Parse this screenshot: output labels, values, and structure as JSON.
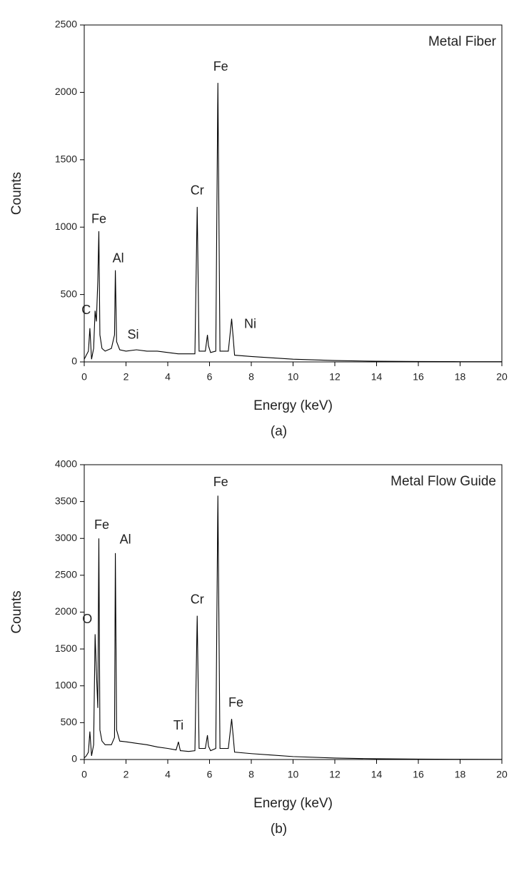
{
  "chart_data": [
    {
      "type": "line",
      "title": "Metal Fiber",
      "caption": "(a)",
      "x_label": "Energy (keV)",
      "y_label": "Counts",
      "color": "#000000",
      "xlim": [
        0,
        20
      ],
      "xticks": [
        0,
        2,
        4,
        6,
        8,
        10,
        12,
        14,
        16,
        18,
        20
      ],
      "ylim": [
        0,
        2500
      ],
      "yticks": [
        0,
        500,
        1000,
        1500,
        2000,
        2500
      ],
      "x": [
        0,
        0.1,
        0.2,
        0.27,
        0.35,
        0.45,
        0.52,
        0.58,
        0.65,
        0.7,
        0.75,
        0.85,
        1.0,
        1.3,
        1.45,
        1.49,
        1.55,
        1.7,
        2.0,
        2.5,
        3.0,
        3.5,
        4.0,
        4.5,
        5.0,
        5.3,
        5.41,
        5.5,
        5.8,
        5.9,
        5.95,
        6.05,
        6.3,
        6.4,
        6.5,
        6.9,
        7.06,
        7.2,
        8,
        9,
        10,
        12,
        14,
        16,
        18,
        20
      ],
      "values": [
        20,
        50,
        80,
        250,
        20,
        100,
        380,
        300,
        600,
        970,
        200,
        100,
        80,
        100,
        200,
        680,
        150,
        90,
        80,
        90,
        80,
        80,
        70,
        60,
        60,
        60,
        1150,
        80,
        80,
        200,
        120,
        70,
        80,
        2070,
        80,
        80,
        320,
        50,
        40,
        30,
        20,
        10,
        5,
        3,
        2,
        2
      ],
      "annotations": [
        {
          "text": "C",
          "x": 0.52
        },
        {
          "text": "Fe",
          "x": 0.7
        },
        {
          "text": "Al",
          "x": 1.49
        },
        {
          "text": "Si",
          "x": 2.0
        },
        {
          "text": "Cr",
          "x": 5.41
        },
        {
          "text": "Fe",
          "x": 6.4
        },
        {
          "text": "Ni",
          "x": 7.06
        }
      ]
    },
    {
      "type": "line",
      "title": "Metal Flow Guide",
      "caption": "(b)",
      "x_label": "Energy (keV)",
      "y_label": "Counts",
      "color": "#000000",
      "xlim": [
        0,
        20
      ],
      "xticks": [
        0,
        2,
        4,
        6,
        8,
        10,
        12,
        14,
        16,
        18,
        20
      ],
      "ylim": [
        0,
        4000
      ],
      "yticks": [
        0,
        500,
        1000,
        1500,
        2000,
        2500,
        3000,
        3500,
        4000
      ],
      "x": [
        0,
        0.1,
        0.2,
        0.27,
        0.35,
        0.45,
        0.52,
        0.58,
        0.65,
        0.7,
        0.75,
        0.85,
        1.0,
        1.3,
        1.45,
        1.49,
        1.55,
        1.7,
        2.0,
        2.5,
        3.0,
        3.5,
        4.0,
        4.4,
        4.51,
        4.6,
        5.0,
        5.3,
        5.41,
        5.5,
        5.8,
        5.9,
        5.95,
        6.05,
        6.3,
        6.4,
        6.5,
        6.9,
        7.06,
        7.2,
        8,
        9,
        10,
        12,
        14,
        16,
        18,
        20
      ],
      "values": [
        20,
        50,
        100,
        380,
        50,
        200,
        1700,
        1200,
        700,
        3000,
        400,
        250,
        200,
        200,
        300,
        2800,
        400,
        250,
        240,
        220,
        200,
        170,
        150,
        130,
        240,
        120,
        110,
        120,
        1950,
        150,
        150,
        330,
        180,
        120,
        150,
        3580,
        150,
        150,
        550,
        100,
        80,
        60,
        40,
        20,
        10,
        5,
        3,
        2
      ],
      "annotations": [
        {
          "text": "O",
          "x": 0.52
        },
        {
          "text": "Fe",
          "x": 0.7
        },
        {
          "text": "Al",
          "x": 1.49
        },
        {
          "text": "Ti",
          "x": 4.51
        },
        {
          "text": "Cr",
          "x": 5.41
        },
        {
          "text": "Fe",
          "x": 6.4
        },
        {
          "text": "Fe",
          "x": 7.06
        }
      ]
    }
  ]
}
